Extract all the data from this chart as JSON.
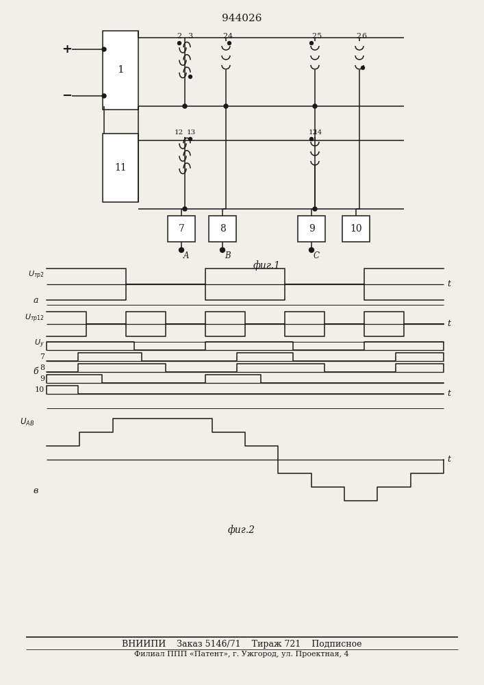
{
  "title": "944026",
  "fig1_label": "фиг.1",
  "fig2_label": "фиг.2",
  "bottom_line1": "ВНИИПИ    Заказ 5146/71    Тираж 721    Подписное",
  "bottom_line2": "Филиал ППП «Патент», г. Ужгород, ул. Проектная, 4",
  "bg_color": "#f2efe9",
  "line_color": "#1a1a1a"
}
